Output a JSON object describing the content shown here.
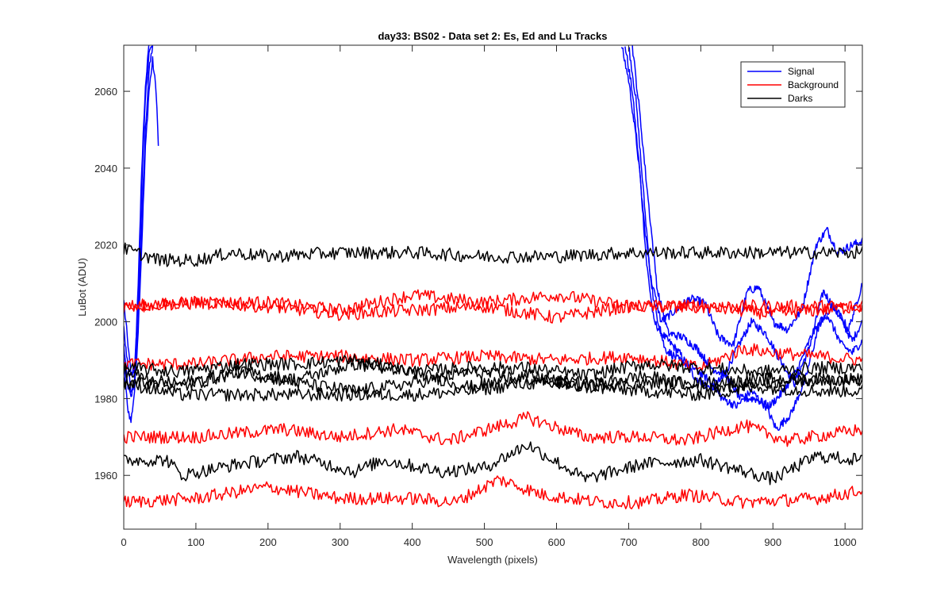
{
  "chart_data": {
    "type": "line",
    "title": "day33: BS02 - Data set 2: Es, Ed and Lu Tracks",
    "xlabel": "Wavelength (pixels)",
    "ylabel": "LuBot (ADU)",
    "xlim": [
      0,
      1024
    ],
    "ylim": [
      1946,
      2072
    ],
    "xticks": [
      0,
      100,
      200,
      300,
      400,
      500,
      600,
      700,
      800,
      900,
      1000
    ],
    "yticks": [
      1960,
      1980,
      2000,
      2020,
      2040,
      2060
    ],
    "grid": false,
    "legend_position": "top-right",
    "legend": [
      {
        "label": "Signal",
        "color": "#0000ff"
      },
      {
        "label": "Background",
        "color": "#ff0000"
      },
      {
        "label": "Darks",
        "color": "#000000"
      }
    ],
    "series": [
      {
        "group": "Signal",
        "color": "#0000ff",
        "points": [
          [
            0,
            1994
          ],
          [
            5,
            1984
          ],
          [
            10,
            1980
          ],
          [
            15,
            1985
          ],
          [
            20,
            2000
          ],
          [
            25,
            2025
          ],
          [
            30,
            2050
          ],
          [
            35,
            2065
          ],
          [
            40,
            2072
          ]
        ]
      },
      {
        "group": "Signal",
        "color": "#0000ff",
        "points": [
          [
            0,
            1990
          ],
          [
            5,
            1978
          ],
          [
            10,
            1974
          ],
          [
            15,
            1982
          ],
          [
            20,
            1998
          ],
          [
            25,
            2020
          ],
          [
            30,
            2045
          ],
          [
            35,
            2060
          ],
          [
            40,
            2068
          ],
          [
            45,
            2060
          ],
          [
            48,
            2046
          ]
        ]
      },
      {
        "group": "Signal",
        "color": "#0000ff",
        "points": [
          [
            0,
            2005
          ],
          [
            5,
            1996
          ],
          [
            10,
            1986
          ],
          [
            15,
            1988
          ],
          [
            20,
            2005
          ],
          [
            25,
            2035
          ],
          [
            30,
            2058
          ],
          [
            35,
            2070
          ],
          [
            40,
            2072
          ]
        ]
      },
      {
        "group": "Signal",
        "color": "#0000ff",
        "points": [
          [
            0,
            1998
          ],
          [
            5,
            1990
          ],
          [
            10,
            1982
          ],
          [
            15,
            1984
          ],
          [
            20,
            2010
          ],
          [
            25,
            2040
          ],
          [
            30,
            2062
          ],
          [
            35,
            2072
          ]
        ]
      },
      {
        "group": "Signal",
        "color": "#0000ff",
        "points": [
          [
            695,
            2072
          ],
          [
            705,
            2060
          ],
          [
            715,
            2040
          ],
          [
            725,
            2015
          ],
          [
            735,
            2000
          ],
          [
            750,
            1996
          ],
          [
            770,
            1992
          ],
          [
            790,
            1986
          ],
          [
            810,
            1983
          ],
          [
            830,
            1985
          ],
          [
            850,
            1993
          ],
          [
            870,
            2000
          ],
          [
            890,
            1997
          ],
          [
            910,
            1990
          ],
          [
            930,
            1984
          ],
          [
            950,
            1993
          ],
          [
            970,
            2008
          ],
          [
            990,
            2002
          ],
          [
            1010,
            1995
          ],
          [
            1024,
            2000
          ]
        ]
      },
      {
        "group": "Signal",
        "color": "#0000ff",
        "points": [
          [
            700,
            2072
          ],
          [
            710,
            2058
          ],
          [
            720,
            2035
          ],
          [
            730,
            2012
          ],
          [
            745,
            2000
          ],
          [
            765,
            2003
          ],
          [
            785,
            2006
          ],
          [
            805,
            2005
          ],
          [
            825,
            1996
          ],
          [
            845,
            1994
          ],
          [
            865,
            2008
          ],
          [
            880,
            2009
          ],
          [
            900,
            2000
          ],
          [
            920,
            1998
          ],
          [
            940,
            2003
          ],
          [
            960,
            2020
          ],
          [
            975,
            2024
          ],
          [
            990,
            2018
          ],
          [
            1010,
            2020
          ],
          [
            1024,
            2021
          ]
        ]
      },
      {
        "group": "Signal",
        "color": "#0000ff",
        "points": [
          [
            690,
            2072
          ],
          [
            700,
            2063
          ],
          [
            712,
            2045
          ],
          [
            722,
            2025
          ],
          [
            735,
            2005
          ],
          [
            750,
            1993
          ],
          [
            770,
            1990
          ],
          [
            790,
            1988
          ],
          [
            810,
            1985
          ],
          [
            830,
            1980
          ],
          [
            850,
            1978
          ],
          [
            870,
            1982
          ],
          [
            890,
            1978
          ],
          [
            905,
            1972
          ],
          [
            925,
            1976
          ],
          [
            945,
            1985
          ],
          [
            965,
            2000
          ],
          [
            985,
            2004
          ],
          [
            1005,
            1998
          ],
          [
            1024,
            2010
          ]
        ]
      },
      {
        "group": "Signal",
        "color": "#0000ff",
        "points": [
          [
            705,
            2072
          ],
          [
            715,
            2055
          ],
          [
            728,
            2030
          ],
          [
            740,
            2008
          ],
          [
            755,
            1997
          ],
          [
            775,
            1996
          ],
          [
            795,
            1993
          ],
          [
            815,
            1988
          ],
          [
            835,
            1986
          ],
          [
            855,
            1980
          ],
          [
            875,
            1980
          ],
          [
            895,
            1978
          ],
          [
            915,
            1982
          ],
          [
            935,
            1988
          ],
          [
            955,
            1997
          ],
          [
            975,
            2002
          ],
          [
            995,
            1994
          ],
          [
            1010,
            1992
          ],
          [
            1024,
            1995
          ]
        ]
      },
      {
        "group": "Background",
        "color": "#ff0000",
        "base": 2004,
        "wobble": [
          [
            0,
            0
          ],
          [
            100,
            1
          ],
          [
            200,
            1
          ],
          [
            300,
            -1
          ],
          [
            400,
            3
          ],
          [
            500,
            1
          ],
          [
            600,
            3
          ],
          [
            700,
            0
          ],
          [
            800,
            0
          ],
          [
            900,
            0
          ],
          [
            1024,
            0
          ]
        ]
      },
      {
        "group": "Background",
        "color": "#ff0000",
        "base": 2004,
        "wobble": [
          [
            0,
            0
          ],
          [
            100,
            1
          ],
          [
            200,
            0
          ],
          [
            300,
            -2
          ],
          [
            400,
            -1
          ],
          [
            500,
            0
          ],
          [
            600,
            -3
          ],
          [
            700,
            0
          ],
          [
            800,
            0
          ],
          [
            900,
            -2
          ],
          [
            1024,
            0
          ]
        ]
      },
      {
        "group": "Background",
        "color": "#ff0000",
        "base": 1990,
        "wobble": [
          [
            0,
            -1
          ],
          [
            100,
            -1
          ],
          [
            200,
            1
          ],
          [
            300,
            1
          ],
          [
            400,
            0
          ],
          [
            500,
            1
          ],
          [
            600,
            0
          ],
          [
            700,
            1
          ],
          [
            800,
            -2
          ],
          [
            860,
            3
          ],
          [
            900,
            2
          ],
          [
            1024,
            0
          ]
        ]
      },
      {
        "group": "Background",
        "color": "#ff0000",
        "base": 1970,
        "wobble": [
          [
            0,
            0
          ],
          [
            100,
            0
          ],
          [
            220,
            2
          ],
          [
            300,
            0
          ],
          [
            380,
            2
          ],
          [
            450,
            -1
          ],
          [
            560,
            5
          ],
          [
            640,
            0
          ],
          [
            720,
            0
          ],
          [
            780,
            -1
          ],
          [
            860,
            3
          ],
          [
            920,
            -1
          ],
          [
            1024,
            2
          ]
        ]
      },
      {
        "group": "Background",
        "color": "#ff0000",
        "base": 1954,
        "wobble": [
          [
            0,
            -1
          ],
          [
            100,
            0
          ],
          [
            200,
            3
          ],
          [
            300,
            0
          ],
          [
            400,
            0
          ],
          [
            460,
            -1
          ],
          [
            520,
            5
          ],
          [
            580,
            1
          ],
          [
            660,
            -1
          ],
          [
            720,
            -1
          ],
          [
            780,
            1
          ],
          [
            860,
            -1
          ],
          [
            960,
            0
          ],
          [
            1024,
            2
          ]
        ]
      },
      {
        "group": "Darks",
        "color": "#000000",
        "base": 2017,
        "wobble": [
          [
            0,
            2
          ],
          [
            50,
            -1
          ],
          [
            100,
            -1
          ],
          [
            150,
            1
          ],
          [
            200,
            0
          ],
          [
            300,
            1
          ],
          [
            400,
            1
          ],
          [
            500,
            0
          ],
          [
            600,
            0
          ],
          [
            700,
            1
          ],
          [
            800,
            1
          ],
          [
            900,
            1
          ],
          [
            1024,
            1
          ]
        ]
      },
      {
        "group": "Darks",
        "color": "#000000",
        "base": 1988,
        "wobble": [
          [
            0,
            0
          ],
          [
            80,
            -1
          ],
          [
            160,
            1
          ],
          [
            240,
            1
          ],
          [
            320,
            2
          ],
          [
            400,
            -1
          ],
          [
            480,
            0
          ],
          [
            560,
            0
          ],
          [
            640,
            -2
          ],
          [
            720,
            1
          ],
          [
            800,
            0
          ],
          [
            880,
            -1
          ],
          [
            960,
            0
          ],
          [
            1024,
            0
          ]
        ]
      },
      {
        "group": "Darks",
        "color": "#000000",
        "base": 1986,
        "wobble": [
          [
            0,
            1
          ],
          [
            80,
            -3
          ],
          [
            160,
            1
          ],
          [
            240,
            -1
          ],
          [
            320,
            3
          ],
          [
            400,
            1
          ],
          [
            480,
            -3
          ],
          [
            560,
            0
          ],
          [
            640,
            -3
          ],
          [
            720,
            0
          ],
          [
            800,
            -3
          ],
          [
            880,
            -2
          ],
          [
            960,
            -1
          ],
          [
            1024,
            -1
          ]
        ]
      },
      {
        "group": "Darks",
        "color": "#000000",
        "base": 1984,
        "wobble": [
          [
            0,
            0
          ],
          [
            80,
            0
          ],
          [
            160,
            3
          ],
          [
            240,
            0
          ],
          [
            320,
            -2
          ],
          [
            400,
            0
          ],
          [
            480,
            3
          ],
          [
            560,
            1
          ],
          [
            640,
            0
          ],
          [
            720,
            0
          ],
          [
            800,
            0
          ],
          [
            880,
            1
          ],
          [
            960,
            1
          ],
          [
            1024,
            1
          ]
        ]
      },
      {
        "group": "Darks",
        "color": "#000000",
        "base": 1982,
        "wobble": [
          [
            0,
            2
          ],
          [
            80,
            -1
          ],
          [
            160,
            -1
          ],
          [
            240,
            -1
          ],
          [
            320,
            -1
          ],
          [
            400,
            -1
          ],
          [
            480,
            0
          ],
          [
            560,
            2
          ],
          [
            640,
            1
          ],
          [
            720,
            0
          ],
          [
            800,
            -1
          ],
          [
            880,
            1
          ],
          [
            960,
            0
          ],
          [
            1024,
            0
          ]
        ]
      },
      {
        "group": "Darks",
        "color": "#000000",
        "base": 1963,
        "wobble": [
          [
            0,
            1
          ],
          [
            60,
            1
          ],
          [
            80,
            -3
          ],
          [
            160,
            0
          ],
          [
            240,
            2
          ],
          [
            320,
            -2
          ],
          [
            360,
            1
          ],
          [
            440,
            -2
          ],
          [
            500,
            -1
          ],
          [
            560,
            5
          ],
          [
            640,
            -4
          ],
          [
            720,
            0
          ],
          [
            800,
            1
          ],
          [
            840,
            -1
          ],
          [
            900,
            -4
          ],
          [
            960,
            2
          ],
          [
            1024,
            1
          ]
        ]
      }
    ]
  }
}
